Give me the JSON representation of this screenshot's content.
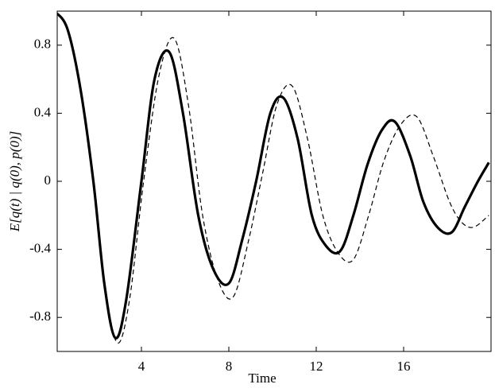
{
  "chart_data": {
    "type": "line",
    "xlabel": "Time",
    "ylabel": "E[q(t) | q(0), p(0)]",
    "xlim": [
      0,
      20
    ],
    "ylim": [
      -1,
      1
    ],
    "xticks": [
      4,
      8,
      12,
      16
    ],
    "yticks": [
      -0.8,
      -0.4,
      0,
      0.4,
      0.8
    ],
    "series": [
      {
        "style": "solid",
        "color": "#000000",
        "x": [
          0,
          0.6,
          1.2,
          1.8,
          2.3,
          2.8,
          3.3,
          4.0,
          4.6,
          5.27,
          5.9,
          6.6,
          7.3,
          8.0,
          8.6,
          9.25,
          9.9,
          10.5,
          11.15,
          11.8,
          12.45,
          13.1,
          13.7,
          14.35,
          15.0,
          15.6,
          16.3,
          16.9,
          17.55,
          18.2,
          18.8,
          19.4,
          19.9
        ],
        "values": [
          1.0,
          0.9,
          0.55,
          0.0,
          -0.6,
          -0.92,
          -0.7,
          0.0,
          0.6,
          0.76,
          0.4,
          -0.2,
          -0.52,
          -0.6,
          -0.35,
          0.0,
          0.4,
          0.49,
          0.25,
          -0.2,
          -0.38,
          -0.41,
          -0.2,
          0.1,
          0.3,
          0.35,
          0.15,
          -0.12,
          -0.27,
          -0.3,
          -0.15,
          0.0,
          0.11
        ]
      },
      {
        "style": "dashed",
        "color": "#000000",
        "x": [
          0,
          0.6,
          1.2,
          1.8,
          2.35,
          2.9,
          3.45,
          4.1,
          4.8,
          5.5,
          6.15,
          6.8,
          7.5,
          8.2,
          8.9,
          9.55,
          10.2,
          10.9,
          11.6,
          12.3,
          13.0,
          13.7,
          14.4,
          15.1,
          15.85,
          16.6,
          17.35,
          18.1,
          18.65,
          19.2,
          19.9
        ],
        "values": [
          1.0,
          0.9,
          0.55,
          0.0,
          -0.62,
          -0.95,
          -0.7,
          0.0,
          0.62,
          0.84,
          0.45,
          -0.2,
          -0.58,
          -0.68,
          -0.35,
          0.05,
          0.45,
          0.56,
          0.25,
          -0.2,
          -0.42,
          -0.46,
          -0.2,
          0.12,
          0.33,
          0.38,
          0.15,
          -0.12,
          -0.24,
          -0.27,
          -0.2
        ]
      }
    ]
  }
}
